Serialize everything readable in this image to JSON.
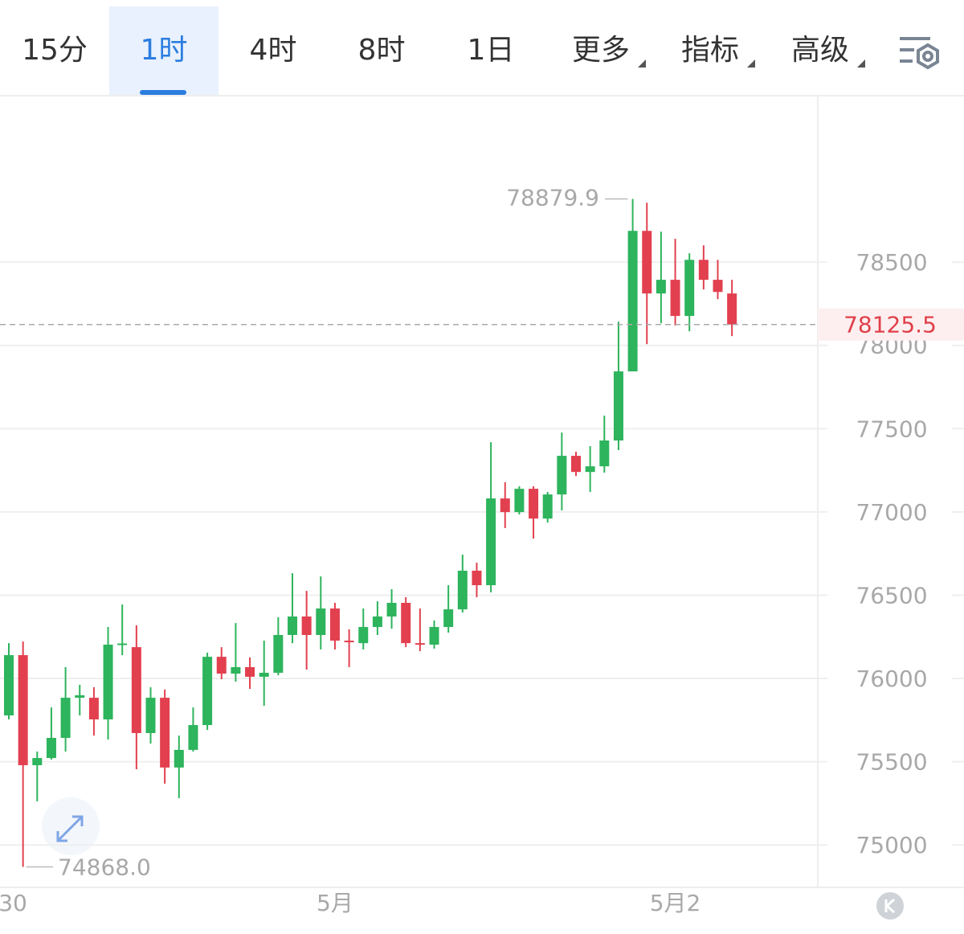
{
  "tabs": [
    "15分",
    "1时",
    "4时",
    "8时",
    "1日",
    "更多",
    "指标",
    "高级"
  ],
  "chart_data": {
    "type": "candlestick",
    "categories": [
      "30",
      null,
      null,
      null,
      null,
      null,
      null,
      null,
      null,
      null,
      null,
      null,
      null,
      null,
      null,
      null,
      null,
      null,
      null,
      null,
      null,
      null,
      null,
      "5月",
      null,
      null,
      null,
      null,
      null,
      null,
      null,
      null,
      null,
      null,
      null,
      null,
      null,
      null,
      null,
      null,
      null,
      null,
      null,
      null,
      null,
      null,
      null,
      "5月2",
      null,
      null,
      null,
      null
    ],
    "open": [
      75778,
      76140,
      75479,
      75522,
      75643,
      75884,
      75884,
      75754,
      76203,
      76188,
      75672,
      75884,
      75465,
      75571,
      75720,
      76130,
      76029,
      76068,
      76010,
      76034,
      76261,
      76372,
      76261,
      76420,
      76227,
      76212,
      76309,
      76372,
      76454,
      76212,
      76203,
      76309,
      76415,
      76647,
      76560,
      77081,
      76999,
      77139,
      76960,
      77105,
      77337,
      77240,
      77274,
      77429,
      77844,
      78688,
      78312,
      78394,
      78177,
      78514,
      78394,
      78312
    ],
    "high": [
      76212,
      76222,
      75561,
      75826,
      76068,
      75962,
      75947,
      76309,
      76444,
      76319,
      75947,
      75933,
      75657,
      75826,
      76155,
      76188,
      76333,
      76126,
      76227,
      76367,
      76632,
      76526,
      76613,
      76454,
      76295,
      76420,
      76463,
      76536,
      76488,
      76420,
      76348,
      76560,
      76743,
      76695,
      77419,
      77178,
      77154,
      77154,
      77120,
      77477,
      77361,
      77395,
      77578,
      78143,
      78879.9,
      78857,
      78683,
      78640,
      78553,
      78601,
      78514,
      78394
    ],
    "low": [
      75754,
      74868,
      75262,
      75513,
      75561,
      75778,
      75657,
      75633,
      76140,
      75455,
      75609,
      75368,
      75281,
      75561,
      75691,
      75995,
      75981,
      75937,
      75836,
      76019,
      76212,
      76053,
      76174,
      76174,
      76068,
      76174,
      76261,
      76299,
      76188,
      76164,
      76179,
      76275,
      76396,
      76488,
      76517,
      76903,
      76985,
      76840,
      76936,
      77009,
      77216,
      77120,
      77236,
      77371,
      77844,
      78008,
      78133,
      78119,
      78085,
      78336,
      78278,
      78056
    ],
    "close": [
      76140,
      75479,
      75522,
      75643,
      75884,
      75899,
      75754,
      76203,
      76210,
      75672,
      75884,
      75465,
      75571,
      75720,
      76130,
      76029,
      76068,
      76010,
      76034,
      76261,
      76372,
      76261,
      76420,
      76227,
      76222,
      76309,
      76372,
      76454,
      76212,
      76203,
      76309,
      76415,
      76647,
      76560,
      77081,
      76999,
      77139,
      76960,
      77105,
      77337,
      77240,
      77274,
      77429,
      77844,
      78688,
      78312,
      78394,
      78177,
      78514,
      78394,
      78321,
      78125.5
    ],
    "up_color": "#2db45c",
    "down_color": "#e2404f",
    "ylim": [
      74750,
      79500
    ],
    "yticks": [
      75000,
      75500,
      76000,
      76500,
      77000,
      77500,
      78000,
      78500
    ],
    "grid": true,
    "high_marker": 78879.9,
    "low_marker": {
      "value": 74868.0,
      "label": "74868.0"
    },
    "last_price": 78125.5
  }
}
